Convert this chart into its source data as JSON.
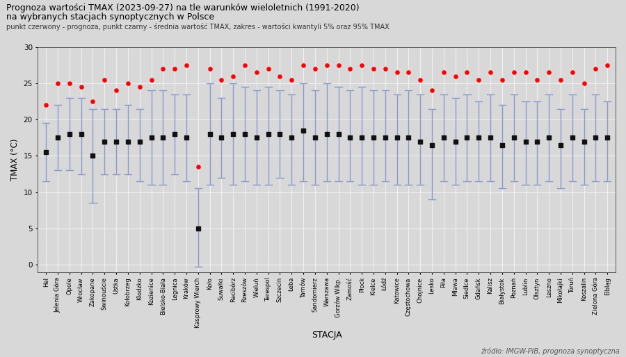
{
  "title_line1": "Prognoza wartości TMAX (2023-09-27) na tle warunków wieloletnich (1991-2020)",
  "title_line2": "na wybranych stacjach synoptycznych w Polsce",
  "subtitle": "punkt czerwony - prognoza, punkt czarny - średnia wartość TMAX, zakres - wartości kwantyli 5% oraz 95% TMAX",
  "xlabel": "STACJA",
  "ylabel": "TMAX (°C)",
  "source": "źródło: IMGW-PIB, prognoza synoptyczna",
  "stations": [
    "Hel",
    "Jelenia Góra",
    "Opole",
    "Wrocław",
    "Zakopane",
    "Świnouście",
    "Ustka",
    "Kołobrzeg",
    "Kłodzko",
    "Kozienice",
    "Bielsko-Biała",
    "Legnica",
    "Kraków",
    "Kasprowy Wierch",
    "Koło",
    "Suwałki",
    "Racibórz",
    "Rzeszów",
    "Wieluń",
    "Terespol",
    "Szczecin",
    "Łeba",
    "Tarnów",
    "Sandomierz",
    "Warszawa",
    "Gorzów Wlkp.",
    "Zamość",
    "Płock",
    "Kielce",
    "Łódź",
    "Katowice",
    "Częstochowa",
    "Chojnice",
    "Lesko",
    "Piła",
    "Mława",
    "Siedlce",
    "Gdańsk",
    "Kalisz",
    "Białystok",
    "Poznań",
    "Lublin",
    "Olsztyn",
    "Leszno",
    "Mikołajki",
    "Toruń",
    "Koszalin",
    "Zielona Góra",
    "Elbląg"
  ],
  "forecast": [
    22.0,
    25.0,
    25.0,
    24.5,
    22.5,
    25.5,
    24.0,
    25.0,
    24.5,
    25.5,
    27.0,
    27.0,
    27.5,
    13.5,
    27.0,
    25.5,
    26.0,
    27.5,
    26.5,
    27.0,
    26.0,
    25.5,
    27.5,
    27.0,
    27.5,
    27.5,
    27.0,
    27.5,
    27.0,
    27.0,
    26.5,
    26.5,
    25.5,
    24.0,
    26.5,
    26.0,
    26.5,
    25.5,
    26.5,
    25.5,
    26.5,
    26.5,
    25.5,
    26.5,
    25.5,
    26.5,
    25.0,
    27.0,
    27.5
  ],
  "mean": [
    15.5,
    17.5,
    18.0,
    18.0,
    15.0,
    17.0,
    17.0,
    17.0,
    17.0,
    17.5,
    17.5,
    18.0,
    17.5,
    5.0,
    18.0,
    17.5,
    18.0,
    18.0,
    17.5,
    18.0,
    18.0,
    17.5,
    18.5,
    17.5,
    18.0,
    18.0,
    17.5,
    17.5,
    17.5,
    17.5,
    17.5,
    17.5,
    17.0,
    16.5,
    17.5,
    17.0,
    17.5,
    17.5,
    17.5,
    16.5,
    17.5,
    17.0,
    17.0,
    17.5,
    16.5,
    17.5,
    17.0,
    17.5,
    17.5
  ],
  "q05": [
    11.5,
    13.0,
    13.0,
    12.5,
    8.5,
    12.5,
    12.5,
    12.5,
    11.5,
    11.0,
    11.0,
    12.5,
    11.5,
    -0.3,
    11.0,
    12.0,
    11.0,
    11.5,
    11.0,
    11.0,
    12.0,
    11.0,
    11.5,
    11.0,
    11.5,
    11.5,
    11.5,
    11.0,
    11.0,
    11.5,
    11.0,
    11.0,
    11.0,
    9.0,
    11.5,
    11.0,
    11.5,
    11.5,
    11.5,
    10.5,
    11.5,
    11.0,
    11.0,
    11.5,
    10.5,
    11.5,
    11.0,
    11.5,
    11.5
  ],
  "q95": [
    19.5,
    22.0,
    23.0,
    23.0,
    21.5,
    21.5,
    21.5,
    22.0,
    21.5,
    24.0,
    24.0,
    23.5,
    23.5,
    10.5,
    25.0,
    23.0,
    25.0,
    24.5,
    24.0,
    24.5,
    24.0,
    23.5,
    25.0,
    24.0,
    25.0,
    24.5,
    24.0,
    24.5,
    24.0,
    24.0,
    23.5,
    24.0,
    23.5,
    21.5,
    23.5,
    23.0,
    23.5,
    22.5,
    23.5,
    22.0,
    23.5,
    22.5,
    22.5,
    23.5,
    21.5,
    23.5,
    21.5,
    23.5,
    22.5
  ],
  "bg_color": "#d8d8d8",
  "plot_bg_color": "#d8d8d8",
  "grid_color": "#f0f0f0",
  "errorbar_color": "#8899cc",
  "forecast_color": "#ff0000",
  "mean_color": "#111111",
  "ylim_min": -1,
  "ylim_max": 30,
  "yticks": [
    0,
    5,
    10,
    15,
    20,
    25,
    30
  ]
}
